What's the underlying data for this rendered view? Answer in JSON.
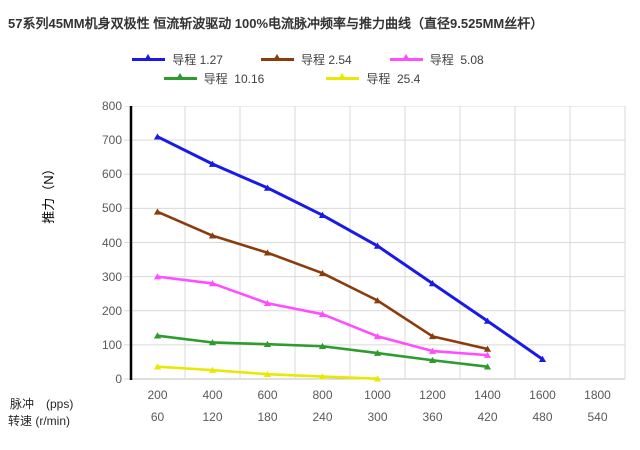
{
  "chart_data": {
    "type": "line",
    "title": "57系列45MM机身双极性 恒流斩波驱动 100%电流脉冲频率与推力曲线（直径9.525MM丝杆）",
    "ylabel": "推力（N）",
    "ylim": [
      0,
      800
    ],
    "ytick_step": 100,
    "grid": true,
    "legend_position": "top",
    "categories": [
      200,
      400,
      600,
      800,
      1000,
      1200,
      1400,
      1600,
      1800
    ],
    "x_axis_rows": [
      {
        "label": "脉冲　(pps)",
        "values": [
          "200",
          "400",
          "600",
          "800",
          "1000",
          "1200",
          "1400",
          "1600",
          "1800"
        ]
      },
      {
        "label": "转速 (r/min)",
        "values": [
          "60",
          "120",
          "180",
          "240",
          "300",
          "360",
          "420",
          "480",
          "540"
        ]
      }
    ],
    "series": [
      {
        "name": "导程 1.27",
        "color": "#1A1AE8",
        "values": [
          710,
          630,
          560,
          480,
          390,
          280,
          170,
          58
        ]
      },
      {
        "name": "导程 2.54",
        "color": "#8B3C0C",
        "values": [
          490,
          420,
          370,
          310,
          230,
          125,
          88
        ]
      },
      {
        "name": "导程  5.08",
        "color": "#FF4DFF",
        "values": [
          300,
          280,
          222,
          190,
          125,
          82,
          70
        ]
      },
      {
        "name": "导程  10.16",
        "color": "#2E9B2E",
        "values": [
          127,
          107,
          102,
          96,
          76,
          55,
          36
        ]
      },
      {
        "name": "导程  25.4",
        "color": "#E8E800",
        "values": [
          36,
          26,
          14,
          7,
          1
        ]
      }
    ],
    "colors": {
      "gridline": "#D9D9D9",
      "y_axis": "#000000",
      "x_axis": "#BFBFBF",
      "tick_text": "#595959",
      "title_text": "#333333"
    }
  }
}
